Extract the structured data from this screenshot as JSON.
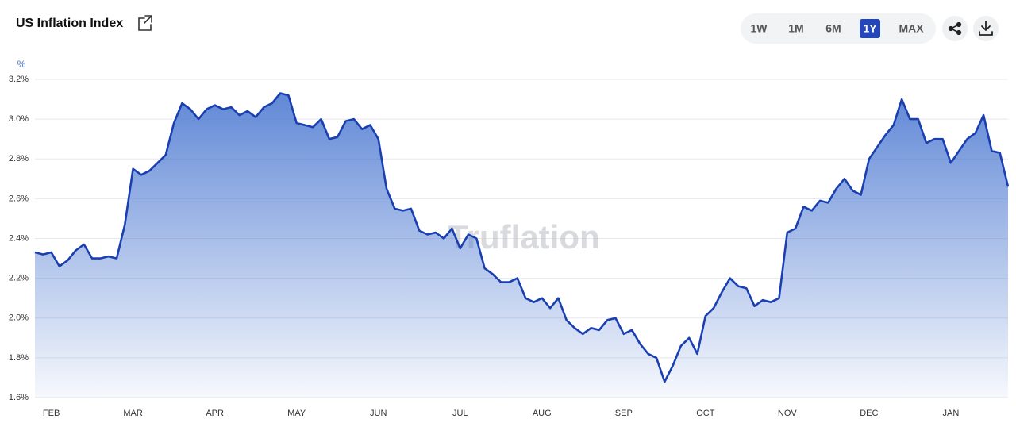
{
  "chart_data": {
    "type": "area",
    "title": "US Inflation Index",
    "ylabel": "%",
    "watermark": "Truflation",
    "range_buttons": [
      {
        "label": "1W",
        "active": false
      },
      {
        "label": "1M",
        "active": false
      },
      {
        "label": "6M",
        "active": false
      },
      {
        "label": "1Y",
        "active": true
      },
      {
        "label": "MAX",
        "active": false
      }
    ],
    "color": "#1a3fb0",
    "grid": true,
    "ylim": [
      1.6,
      3.2
    ],
    "yticks": [
      {
        "value": 1.6,
        "label": "1.6%"
      },
      {
        "value": 1.8,
        "label": "1.8%"
      },
      {
        "value": 2.0,
        "label": "2.0%"
      },
      {
        "value": 2.2,
        "label": "2.2%"
      },
      {
        "value": 2.4,
        "label": "2.4%"
      },
      {
        "value": 2.6,
        "label": "2.6%"
      },
      {
        "value": 2.8,
        "label": "2.8%"
      },
      {
        "value": 3.0,
        "label": "3.0%"
      },
      {
        "value": 3.2,
        "label": "3.2%"
      }
    ],
    "categories": [
      null,
      null,
      "FEB",
      null,
      null,
      null,
      null,
      null,
      null,
      null,
      null,
      null,
      "MAR",
      null,
      null,
      null,
      null,
      null,
      null,
      null,
      null,
      null,
      "APR",
      null,
      null,
      null,
      null,
      null,
      null,
      null,
      null,
      null,
      "MAY",
      null,
      null,
      null,
      null,
      null,
      null,
      null,
      null,
      null,
      "JUN",
      null,
      null,
      null,
      null,
      null,
      null,
      null,
      null,
      null,
      "JUL",
      null,
      null,
      null,
      null,
      null,
      null,
      null,
      null,
      null,
      "AUG",
      null,
      null,
      null,
      null,
      null,
      null,
      null,
      null,
      null,
      "SEP",
      null,
      null,
      null,
      null,
      null,
      null,
      null,
      null,
      null,
      "OCT",
      null,
      null,
      null,
      null,
      null,
      null,
      null,
      null,
      null,
      "NOV",
      null,
      null,
      null,
      null,
      null,
      null,
      null,
      null,
      null,
      "DEC",
      null,
      null,
      null,
      null,
      null,
      null,
      null,
      null,
      null,
      "JAN",
      null,
      null,
      null,
      null,
      null,
      null,
      null
    ],
    "values": [
      2.33,
      2.32,
      2.33,
      2.26,
      2.29,
      2.34,
      2.37,
      2.3,
      2.3,
      2.31,
      2.3,
      2.47,
      2.75,
      2.72,
      2.74,
      2.78,
      2.82,
      2.98,
      3.08,
      3.05,
      3.0,
      3.05,
      3.07,
      3.05,
      3.06,
      3.02,
      3.04,
      3.01,
      3.06,
      3.08,
      3.13,
      3.12,
      2.98,
      2.97,
      2.96,
      3.0,
      2.9,
      2.91,
      2.99,
      3.0,
      2.95,
      2.97,
      2.9,
      2.65,
      2.55,
      2.54,
      2.55,
      2.44,
      2.42,
      2.43,
      2.4,
      2.45,
      2.35,
      2.42,
      2.4,
      2.25,
      2.22,
      2.18,
      2.18,
      2.2,
      2.1,
      2.08,
      2.1,
      2.05,
      2.1,
      1.99,
      1.95,
      1.92,
      1.95,
      1.94,
      1.99,
      2.0,
      1.92,
      1.94,
      1.87,
      1.82,
      1.8,
      1.68,
      1.76,
      1.86,
      1.9,
      1.82,
      2.01,
      2.05,
      2.13,
      2.2,
      2.16,
      2.15,
      2.06,
      2.09,
      2.08,
      2.1,
      2.43,
      2.45,
      2.56,
      2.54,
      2.59,
      2.58,
      2.65,
      2.7,
      2.64,
      2.62,
      2.8,
      2.86,
      2.92,
      2.97,
      3.1,
      3.0,
      3.0,
      2.88,
      2.9,
      2.9,
      2.78,
      2.84,
      2.9,
      2.93,
      3.02,
      2.84,
      2.83,
      2.66
    ]
  }
}
